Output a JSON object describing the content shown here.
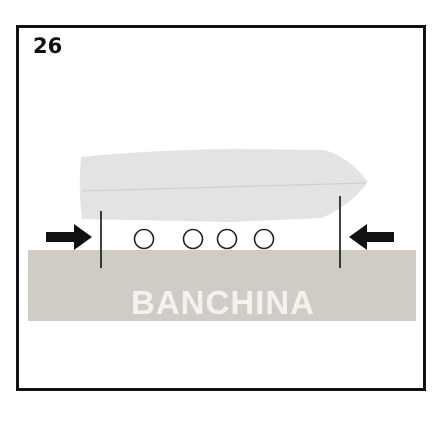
{
  "step": {
    "number": "26"
  },
  "dock": {
    "label": "BANCHINA",
    "color": "#d1cbc6",
    "label_color": "#f4f2ef"
  },
  "boat": {
    "hull_color": "#e3e3e3",
    "fender_count": 4
  },
  "arrows": {
    "color": "#111111",
    "left": "right-arrow-icon",
    "right": "left-arrow-icon"
  }
}
